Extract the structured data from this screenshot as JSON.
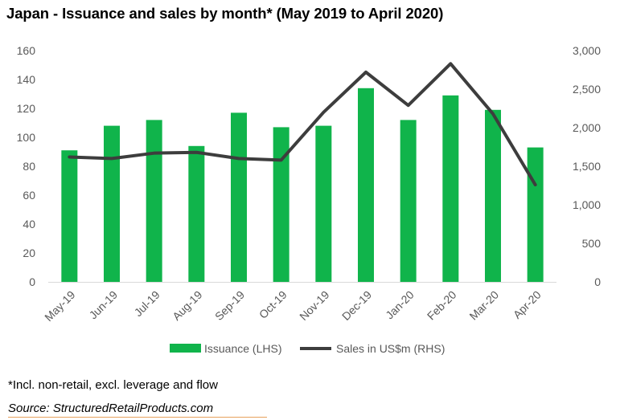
{
  "title": "Japan - Issuance and sales by month* (May 2019 to April 2020)",
  "footnote": "*Incl. non-retail, excl. leverage and flow",
  "source": "Source: StructuredRetailProducts.com",
  "colors": {
    "bar": "#10b44b",
    "line": "#3d3d3d",
    "axis_text": "#595959",
    "source_rule": "#e8a25c"
  },
  "chart_data": {
    "type": "bar",
    "categories": [
      "May-19",
      "Jun-19",
      "Jul-19",
      "Aug-19",
      "Sep-19",
      "Oct-19",
      "Nov-19",
      "Dec-19",
      "Jan-20",
      "Feb-20",
      "Mar-20",
      "Apr-20"
    ],
    "series": [
      {
        "name": "Issuance (LHS)",
        "type": "bar",
        "axis": "left",
        "values": [
          91,
          108,
          112,
          94,
          117,
          107,
          108,
          134,
          112,
          129,
          119,
          93
        ]
      },
      {
        "name": "Sales in US$m (RHS)",
        "type": "line",
        "axis": "right",
        "values": [
          1620,
          1600,
          1670,
          1680,
          1600,
          1580,
          2200,
          2720,
          2290,
          2830,
          2180,
          1260
        ]
      }
    ],
    "y_left": {
      "min": 0,
      "max": 160,
      "ticks": [
        "0",
        "20",
        "40",
        "60",
        "80",
        "100",
        "120",
        "140",
        "160"
      ]
    },
    "y_right": {
      "min": 0,
      "max": 3000,
      "ticks": [
        "0",
        "500",
        "1,000",
        "1,500",
        "2,000",
        "2,500",
        "3,000"
      ]
    },
    "grid": false,
    "legend_position": "bottom"
  }
}
